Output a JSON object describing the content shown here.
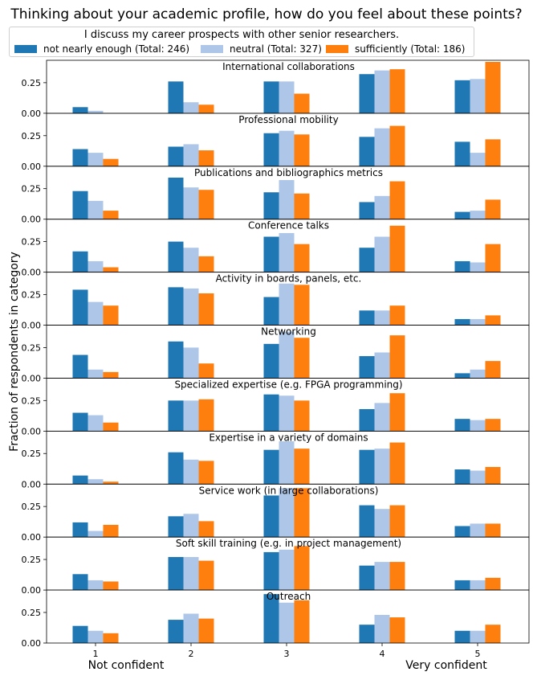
{
  "figure_title": "Thinking about your academic profile, how do you feel about these points?",
  "legend": {
    "title": "I discuss my career prospects with other senior researchers.",
    "items": [
      {
        "label": "not nearly enough (Total: 246)",
        "color": "#1f77b4"
      },
      {
        "label": "neutral (Total: 327)",
        "color": "#aec7e8"
      },
      {
        "label": "sufficiently (Total: 186)",
        "color": "#ff7f0e"
      }
    ]
  },
  "chart_data": {
    "type": "bar",
    "ylabel": "Fraction of respondents in category",
    "x_ticks": [
      "1",
      "2",
      "3",
      "4",
      "5"
    ],
    "x_extreme_labels": {
      "low": "Not confident",
      "high": "Very confident"
    },
    "ylim": [
      0,
      0.42
    ],
    "yticks": [
      "0.00",
      "0.25"
    ],
    "series_names": [
      "not nearly enough (Total: 246)",
      "neutral (Total: 327)",
      "sufficiently (Total: 186)"
    ],
    "series_colors": [
      "#1f77b4",
      "#aec7e8",
      "#ff7f0e"
    ],
    "panels": [
      {
        "title": "International collaborations",
        "values": [
          [
            0.05,
            0.26,
            0.26,
            0.32,
            0.27
          ],
          [
            0.02,
            0.09,
            0.26,
            0.35,
            0.28
          ],
          [
            0.0,
            0.07,
            0.16,
            0.36,
            0.42
          ]
        ]
      },
      {
        "title": "Professional mobility",
        "values": [
          [
            0.14,
            0.16,
            0.27,
            0.24,
            0.2
          ],
          [
            0.11,
            0.18,
            0.29,
            0.31,
            0.11
          ],
          [
            0.06,
            0.13,
            0.26,
            0.33,
            0.22
          ]
        ]
      },
      {
        "title": "Publications and bibliographics metrics",
        "values": [
          [
            0.23,
            0.34,
            0.22,
            0.14,
            0.06
          ],
          [
            0.15,
            0.26,
            0.32,
            0.19,
            0.07
          ],
          [
            0.07,
            0.24,
            0.21,
            0.31,
            0.16
          ]
        ]
      },
      {
        "title": "Conference talks",
        "values": [
          [
            0.17,
            0.25,
            0.29,
            0.2,
            0.09
          ],
          [
            0.09,
            0.2,
            0.32,
            0.29,
            0.08
          ],
          [
            0.04,
            0.13,
            0.23,
            0.38,
            0.23
          ]
        ]
      },
      {
        "title": "Activity in boards, panels, etc.",
        "values": [
          [
            0.29,
            0.31,
            0.23,
            0.12,
            0.05
          ],
          [
            0.19,
            0.3,
            0.34,
            0.12,
            0.05
          ],
          [
            0.16,
            0.26,
            0.33,
            0.16,
            0.08
          ]
        ]
      },
      {
        "title": "Networking",
        "values": [
          [
            0.19,
            0.3,
            0.28,
            0.18,
            0.04
          ],
          [
            0.07,
            0.25,
            0.38,
            0.21,
            0.07
          ],
          [
            0.05,
            0.12,
            0.33,
            0.35,
            0.14
          ]
        ]
      },
      {
        "title": "Specialized expertise (e.g. FPGA programming)",
        "values": [
          [
            0.15,
            0.25,
            0.3,
            0.18,
            0.1
          ],
          [
            0.13,
            0.25,
            0.29,
            0.23,
            0.09
          ],
          [
            0.07,
            0.26,
            0.25,
            0.31,
            0.1
          ]
        ]
      },
      {
        "title": "Expertise in a variety of domains",
        "values": [
          [
            0.07,
            0.26,
            0.28,
            0.28,
            0.12
          ],
          [
            0.04,
            0.2,
            0.35,
            0.29,
            0.11
          ],
          [
            0.02,
            0.19,
            0.29,
            0.34,
            0.14
          ]
        ]
      },
      {
        "title": "Service work (in large collaborations)",
        "values": [
          [
            0.12,
            0.17,
            0.34,
            0.26,
            0.09
          ],
          [
            0.05,
            0.19,
            0.4,
            0.23,
            0.11
          ],
          [
            0.1,
            0.13,
            0.4,
            0.26,
            0.11
          ]
        ]
      },
      {
        "title": "Soft skill training (e.g. in project management)",
        "values": [
          [
            0.13,
            0.27,
            0.31,
            0.2,
            0.08
          ],
          [
            0.08,
            0.27,
            0.33,
            0.23,
            0.08
          ],
          [
            0.07,
            0.24,
            0.36,
            0.23,
            0.1
          ]
        ]
      },
      {
        "title": "Outreach",
        "values": [
          [
            0.14,
            0.19,
            0.4,
            0.15,
            0.1
          ],
          [
            0.1,
            0.24,
            0.33,
            0.23,
            0.1
          ],
          [
            0.08,
            0.2,
            0.35,
            0.21,
            0.15
          ]
        ]
      }
    ]
  }
}
